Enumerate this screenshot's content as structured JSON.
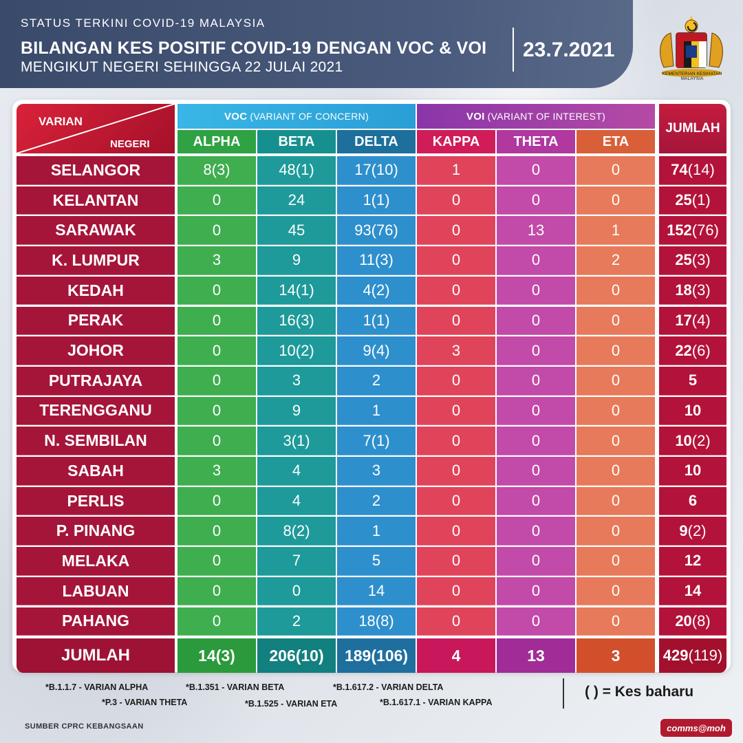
{
  "header": {
    "kicker": "STATUS TERKINI COVID-19 MALAYSIA",
    "title": "BILANGAN KES POSITIF COVID-19 DENGAN VOC & VOI",
    "subtitle": "MENGIKUT NEGERI SEHINGGA 22 JULAI 2021",
    "date": "23.7.2021",
    "ministry": "KEMENTERIAN KESIHATAN MALAYSIA"
  },
  "table": {
    "corner_top": "VARIAN",
    "corner_bottom": "NEGERI",
    "voc_group": {
      "abbr": "VOC",
      "full": "(VARIANT OF CONCERN)"
    },
    "voi_group": {
      "abbr": "VOI",
      "full": "(VARIANT OF INTEREST)"
    },
    "total_header": "JUMLAH",
    "columns": [
      "ALPHA",
      "BETA",
      "DELTA",
      "KAPPA",
      "THETA",
      "ETA"
    ],
    "rows": [
      {
        "state": "SELANGOR",
        "values": [
          "8(3)",
          "48(1)",
          "17(10)",
          "1",
          "0",
          "0"
        ],
        "total": {
          "main": "74",
          "new": "(14)"
        }
      },
      {
        "state": "KELANTAN",
        "values": [
          "0",
          "24",
          "1(1)",
          "0",
          "0",
          "0"
        ],
        "total": {
          "main": "25",
          "new": "(1)"
        }
      },
      {
        "state": "SARAWAK",
        "values": [
          "0",
          "45",
          "93(76)",
          "0",
          "13",
          "1"
        ],
        "total": {
          "main": "152",
          "new": "(76)"
        }
      },
      {
        "state": "K. LUMPUR",
        "values": [
          "3",
          "9",
          "11(3)",
          "0",
          "0",
          "2"
        ],
        "total": {
          "main": "25",
          "new": "(3)"
        }
      },
      {
        "state": "KEDAH",
        "values": [
          "0",
          "14(1)",
          "4(2)",
          "0",
          "0",
          "0"
        ],
        "total": {
          "main": "18",
          "new": "(3)"
        }
      },
      {
        "state": "PERAK",
        "values": [
          "0",
          "16(3)",
          "1(1)",
          "0",
          "0",
          "0"
        ],
        "total": {
          "main": "17",
          "new": "(4)"
        }
      },
      {
        "state": "JOHOR",
        "values": [
          "0",
          "10(2)",
          "9(4)",
          "3",
          "0",
          "0"
        ],
        "total": {
          "main": "22",
          "new": "(6)"
        }
      },
      {
        "state": "PUTRAJAYA",
        "values": [
          "0",
          "3",
          "2",
          "0",
          "0",
          "0"
        ],
        "total": {
          "main": "5",
          "new": ""
        }
      },
      {
        "state": "TERENGGANU",
        "values": [
          "0",
          "9",
          "1",
          "0",
          "0",
          "0"
        ],
        "total": {
          "main": "10",
          "new": ""
        }
      },
      {
        "state": "N. SEMBILAN",
        "values": [
          "0",
          "3(1)",
          "7(1)",
          "0",
          "0",
          "0"
        ],
        "total": {
          "main": "10",
          "new": "(2)"
        }
      },
      {
        "state": "SABAH",
        "values": [
          "3",
          "4",
          "3",
          "0",
          "0",
          "0"
        ],
        "total": {
          "main": "10",
          "new": ""
        }
      },
      {
        "state": "PERLIS",
        "values": [
          "0",
          "4",
          "2",
          "0",
          "0",
          "0"
        ],
        "total": {
          "main": "6",
          "new": ""
        }
      },
      {
        "state": "P. PINANG",
        "values": [
          "0",
          "8(2)",
          "1",
          "0",
          "0",
          "0"
        ],
        "total": {
          "main": "9",
          "new": "(2)"
        }
      },
      {
        "state": "MELAKA",
        "values": [
          "0",
          "7",
          "5",
          "0",
          "0",
          "0"
        ],
        "total": {
          "main": "12",
          "new": ""
        }
      },
      {
        "state": "LABUAN",
        "values": [
          "0",
          "0",
          "14",
          "0",
          "0",
          "0"
        ],
        "total": {
          "main": "14",
          "new": ""
        }
      },
      {
        "state": "PAHANG",
        "values": [
          "0",
          "2",
          "18(8)",
          "0",
          "0",
          "0"
        ],
        "total": {
          "main": "20",
          "new": "(8)"
        }
      }
    ],
    "total_row": {
      "label": "JUMLAH",
      "values": [
        "14(3)",
        "206(10)",
        "189(106)",
        "4",
        "13",
        "3"
      ],
      "total": {
        "main": "429",
        "new": "(119)"
      }
    }
  },
  "colors": {
    "alpha": "#3fae4f",
    "beta": "#1e9a9a",
    "delta": "#2e8fcd",
    "kappa": "#e0445a",
    "theta": "#c24aa8",
    "eta": "#e77a5a",
    "state": "#a5153a",
    "total": "#b3123a",
    "voc_head": "#2aa6d9",
    "voi_head": "#a03aa4"
  },
  "footer": {
    "notes": [
      "*B.1.1.7 - VARIAN ALPHA",
      "*B.1.351 - VARIAN BETA",
      "*B.1.617.2 - VARIAN DELTA",
      "*P.3 - VARIAN THETA",
      "*B.1.525 - VARIAN ETA",
      "*B.1.617.1 - VARIAN KAPPA"
    ],
    "legend": "( ) = Kes baharu",
    "source": "SUMBER  CPRC KEBANGSAAN",
    "brand": "comms@moh"
  }
}
